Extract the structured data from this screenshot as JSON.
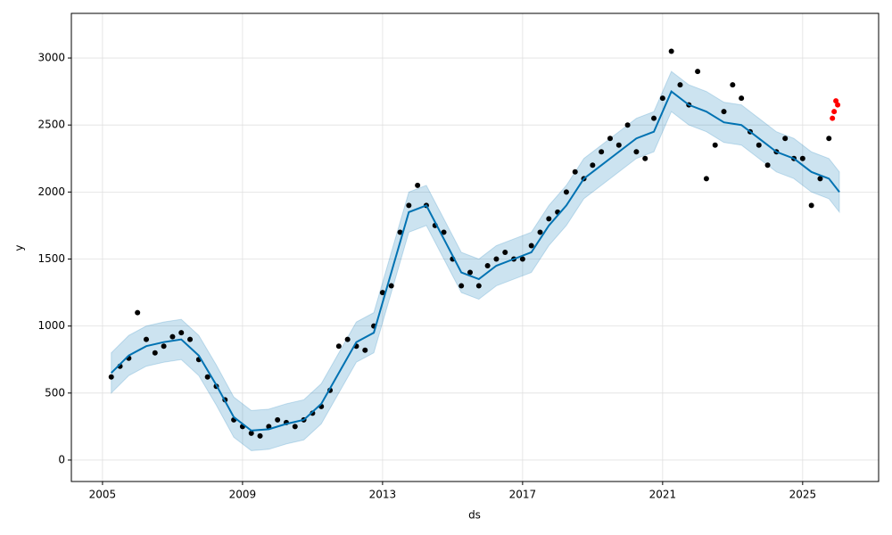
{
  "chart_data": {
    "type": "scatter",
    "xlabel": "ds",
    "ylabel": "y",
    "xlim": [
      2004.11,
      2027.17
    ],
    "ylim": [
      -160,
      3333
    ],
    "xticks": [
      2005,
      2009,
      2013,
      2017,
      2021,
      2025
    ],
    "yticks": [
      0,
      500,
      1000,
      1500,
      2000,
      2500,
      3000
    ],
    "grid": true,
    "observed": {
      "color": "#000000",
      "x": [
        2005.25,
        2005.5,
        2005.75,
        2006.0,
        2006.25,
        2006.5,
        2006.75,
        2007.0,
        2007.25,
        2007.5,
        2007.75,
        2008.0,
        2008.25,
        2008.5,
        2008.75,
        2009.0,
        2009.25,
        2009.5,
        2009.75,
        2010.0,
        2010.25,
        2010.5,
        2010.75,
        2011.0,
        2011.25,
        2011.5,
        2011.75,
        2012.0,
        2012.25,
        2012.5,
        2012.75,
        2013.0,
        2013.25,
        2013.5,
        2013.75,
        2014.0,
        2014.25,
        2014.5,
        2014.75,
        2015.0,
        2015.25,
        2015.5,
        2015.75,
        2016.0,
        2016.25,
        2016.5,
        2016.75,
        2017.0,
        2017.25,
        2017.5,
        2017.75,
        2018.0,
        2018.25,
        2018.5,
        2018.75,
        2019.0,
        2019.25,
        2019.5,
        2019.75,
        2020.0,
        2020.25,
        2020.5,
        2020.75,
        2021.0,
        2021.25,
        2021.5,
        2021.75,
        2022.0,
        2022.25,
        2022.5,
        2022.75,
        2023.0,
        2023.25,
        2023.5,
        2023.75,
        2024.0,
        2024.25,
        2024.5,
        2024.75,
        2025.0,
        2025.25,
        2025.5,
        2025.75
      ],
      "y": [
        620,
        700,
        760,
        1100,
        900,
        800,
        850,
        920,
        950,
        900,
        750,
        620,
        550,
        450,
        300,
        250,
        200,
        180,
        250,
        300,
        280,
        250,
        300,
        350,
        400,
        520,
        850,
        900,
        850,
        820,
        1000,
        1250,
        1300,
        1700,
        1900,
        2050,
        1900,
        1750,
        1700,
        1500,
        1300,
        1400,
        1300,
        1450,
        1500,
        1550,
        1500,
        1500,
        1600,
        1700,
        1800,
        1850,
        2000,
        2150,
        2100,
        2200,
        2300,
        2400,
        2350,
        2500,
        2300,
        2250,
        2550,
        2700,
        3050,
        2800,
        2650,
        2900,
        2100,
        2350,
        2600,
        2800,
        2700,
        2450,
        2350,
        2200,
        2300,
        2400,
        2250,
        2250,
        1900,
        2100,
        2400
      ]
    },
    "recent": {
      "color": "#ff0000",
      "x": [
        2025.85,
        2025.9,
        2025.95,
        2026.0
      ],
      "y": [
        2550,
        2600,
        2680,
        2650
      ]
    },
    "forecast": {
      "color": "#0072b2",
      "band_color": "#0072b2",
      "x": [
        2005.25,
        2005.75,
        2006.25,
        2006.75,
        2007.25,
        2007.75,
        2008.25,
        2008.75,
        2009.25,
        2009.75,
        2010.25,
        2010.75,
        2011.25,
        2011.75,
        2012.25,
        2012.75,
        2013.25,
        2013.75,
        2014.25,
        2014.75,
        2015.25,
        2015.75,
        2016.25,
        2016.75,
        2017.25,
        2017.75,
        2018.25,
        2018.75,
        2019.25,
        2019.75,
        2020.25,
        2020.75,
        2021.25,
        2021.75,
        2022.25,
        2022.75,
        2023.25,
        2023.75,
        2024.25,
        2024.75,
        2025.25,
        2025.75,
        2026.05
      ],
      "yhat": [
        650,
        780,
        850,
        880,
        900,
        780,
        560,
        320,
        220,
        230,
        270,
        300,
        420,
        650,
        880,
        950,
        1400,
        1850,
        1900,
        1650,
        1400,
        1350,
        1450,
        1500,
        1550,
        1750,
        1900,
        2100,
        2200,
        2300,
        2400,
        2450,
        2750,
        2650,
        2600,
        2520,
        2500,
        2400,
        2300,
        2250,
        2150,
        2100,
        2000
      ],
      "lower": [
        500,
        630,
        700,
        730,
        750,
        630,
        410,
        170,
        70,
        80,
        120,
        150,
        270,
        500,
        730,
        800,
        1250,
        1700,
        1750,
        1500,
        1250,
        1200,
        1300,
        1350,
        1400,
        1600,
        1750,
        1950,
        2050,
        2150,
        2250,
        2300,
        2600,
        2500,
        2450,
        2370,
        2350,
        2250,
        2150,
        2100,
        2000,
        1950,
        1850
      ],
      "upper": [
        800,
        930,
        1000,
        1030,
        1050,
        930,
        710,
        470,
        370,
        380,
        420,
        450,
        570,
        800,
        1030,
        1100,
        1550,
        2000,
        2050,
        1800,
        1550,
        1500,
        1600,
        1650,
        1700,
        1900,
        2050,
        2250,
        2350,
        2450,
        2550,
        2600,
        2900,
        2800,
        2750,
        2670,
        2650,
        2550,
        2450,
        2400,
        2300,
        2250,
        2150
      ]
    }
  }
}
